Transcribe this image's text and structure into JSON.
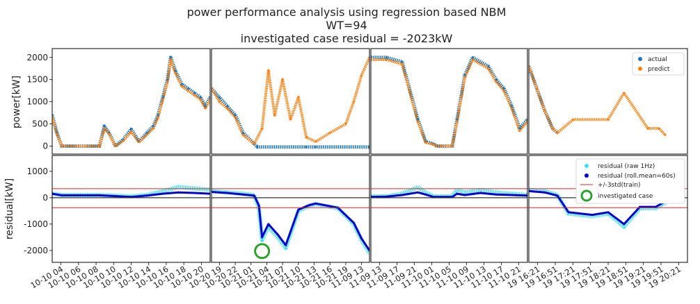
{
  "figure": {
    "title_lines": [
      "power performance analysis using regression based NBM",
      "WT=94",
      "investigated case residual = -2023kW"
    ]
  },
  "colors": {
    "actual": "#1f77b4",
    "predict": "#ff7f0e",
    "residual_raw": "#40e0f0",
    "residual_roll": "#0000cd",
    "std_line": "#d62728",
    "zero_line": "#333333",
    "marker": "#2ca02c"
  },
  "chart_data": {
    "type": "scatter",
    "title": "power performance analysis using regression based NBM / WT=94 / investigated case residual = -2023kW",
    "rows": [
      {
        "key": "power",
        "ylabel": "power[kW]",
        "ylim": [
          -180,
          2200
        ],
        "yticks": [
          0,
          500,
          1000,
          1500,
          2000
        ]
      },
      {
        "key": "residual",
        "ylabel": "residual[kW]",
        "ylim": [
          -2450,
          1600
        ],
        "yticks": [
          -2000,
          -1000,
          0,
          1000
        ]
      }
    ],
    "std_band": [
      -380,
      340
    ],
    "investigated_case": {
      "panel": 1,
      "t": 0.32,
      "residual": -2023
    },
    "legends": {
      "power": [
        "actual",
        "predict"
      ],
      "residual": [
        "residual (raw 1Hz)",
        "residual (roll.mean=60s)",
        "+/-3std(train)",
        "investigated case"
      ]
    },
    "panels": [
      {
        "xticks": [
          "10-10 04",
          "10-10 06",
          "10-10 08",
          "10-10 10",
          "10-10 12",
          "10-10 14",
          "10-10 16",
          "10-10 18",
          "10-10 20"
        ],
        "power_actual": [
          [
            0,
            700
          ],
          [
            0.03,
            300
          ],
          [
            0.06,
            0
          ],
          [
            0.3,
            0
          ],
          [
            0.33,
            450
          ],
          [
            0.36,
            300
          ],
          [
            0.4,
            0
          ],
          [
            0.45,
            150
          ],
          [
            0.5,
            380
          ],
          [
            0.55,
            100
          ],
          [
            0.6,
            300
          ],
          [
            0.64,
            450
          ],
          [
            0.67,
            700
          ],
          [
            0.7,
            1100
          ],
          [
            0.73,
            1500
          ],
          [
            0.75,
            2000
          ],
          [
            0.78,
            1700
          ],
          [
            0.82,
            1400
          ],
          [
            0.86,
            1300
          ],
          [
            0.9,
            1200
          ],
          [
            0.94,
            1100
          ],
          [
            0.97,
            900
          ],
          [
            1,
            1100
          ]
        ],
        "power_predict": [
          [
            0,
            650
          ],
          [
            0.03,
            280
          ],
          [
            0.06,
            0
          ],
          [
            0.3,
            0
          ],
          [
            0.33,
            400
          ],
          [
            0.36,
            280
          ],
          [
            0.4,
            0
          ],
          [
            0.45,
            120
          ],
          [
            0.5,
            320
          ],
          [
            0.55,
            90
          ],
          [
            0.6,
            260
          ],
          [
            0.64,
            400
          ],
          [
            0.67,
            650
          ],
          [
            0.7,
            1050
          ],
          [
            0.73,
            1450
          ],
          [
            0.75,
            1950
          ],
          [
            0.78,
            1650
          ],
          [
            0.82,
            1350
          ],
          [
            0.86,
            1250
          ],
          [
            0.9,
            1150
          ],
          [
            0.94,
            1050
          ],
          [
            0.97,
            850
          ],
          [
            1,
            1050
          ]
        ],
        "resid_raw": [
          [
            0,
            150
          ],
          [
            0.06,
            100
          ],
          [
            0.3,
            100
          ],
          [
            0.5,
            50
          ],
          [
            0.6,
            100
          ],
          [
            0.7,
            250
          ],
          [
            0.8,
            400
          ],
          [
            0.9,
            350
          ],
          [
            1,
            300
          ]
        ],
        "resid_roll": [
          [
            0,
            150
          ],
          [
            0.06,
            90
          ],
          [
            0.3,
            90
          ],
          [
            0.5,
            30
          ],
          [
            0.6,
            80
          ],
          [
            0.7,
            150
          ],
          [
            0.8,
            200
          ],
          [
            0.9,
            180
          ],
          [
            1,
            150
          ]
        ]
      },
      {
        "xticks": [
          "10-20 19",
          "10-20 22",
          "10-21 01",
          "10-21 04",
          "10-21 07",
          "10-21 10",
          "10-21 13",
          "10-21 16",
          "10-21 19",
          "11-09 13"
        ],
        "power_actual": [
          [
            0,
            1300
          ],
          [
            0.05,
            1100
          ],
          [
            0.1,
            900
          ],
          [
            0.15,
            700
          ],
          [
            0.2,
            300
          ],
          [
            0.27,
            50
          ],
          [
            0.29,
            -20
          ],
          [
            0.6,
            -20
          ],
          [
            0.66,
            -20
          ],
          [
            1,
            -20
          ]
        ],
        "power_predict": [
          [
            0,
            1300
          ],
          [
            0.05,
            1000
          ],
          [
            0.1,
            850
          ],
          [
            0.15,
            650
          ],
          [
            0.2,
            250
          ],
          [
            0.27,
            50
          ],
          [
            0.32,
            400
          ],
          [
            0.36,
            1700
          ],
          [
            0.4,
            700
          ],
          [
            0.45,
            1500
          ],
          [
            0.5,
            600
          ],
          [
            0.55,
            1100
          ],
          [
            0.6,
            200
          ],
          [
            0.66,
            100
          ],
          [
            0.75,
            300
          ],
          [
            0.85,
            500
          ],
          [
            0.9,
            1000
          ],
          [
            0.95,
            1600
          ],
          [
            1,
            2000
          ]
        ],
        "resid_raw": [
          [
            0,
            250
          ],
          [
            0.1,
            200
          ],
          [
            0.2,
            150
          ],
          [
            0.27,
            100
          ],
          [
            0.3,
            -400
          ],
          [
            0.32,
            -1600
          ],
          [
            0.36,
            -1100
          ],
          [
            0.42,
            -1500
          ],
          [
            0.47,
            -1900
          ],
          [
            0.55,
            -500
          ],
          [
            0.62,
            -300
          ],
          [
            0.66,
            -250
          ],
          [
            0.8,
            -400
          ],
          [
            0.9,
            -1000
          ],
          [
            0.95,
            -1600
          ],
          [
            1,
            -2100
          ]
        ],
        "resid_roll": [
          [
            0,
            220
          ],
          [
            0.1,
            180
          ],
          [
            0.2,
            120
          ],
          [
            0.27,
            80
          ],
          [
            0.3,
            -300
          ],
          [
            0.32,
            -1500
          ],
          [
            0.36,
            -1000
          ],
          [
            0.42,
            -1400
          ],
          [
            0.47,
            -1800
          ],
          [
            0.55,
            -450
          ],
          [
            0.62,
            -280
          ],
          [
            0.66,
            -220
          ],
          [
            0.8,
            -380
          ],
          [
            0.9,
            -950
          ],
          [
            0.95,
            -1550
          ],
          [
            1,
            -2000
          ]
        ]
      },
      {
        "xticks": [
          "11-09 13",
          "11-09 17",
          "11-09 21",
          "11-10 01",
          "11-10 05",
          "11-10 09",
          "11-10 13",
          "11-10 17",
          "11-10 21"
        ],
        "power_actual": [
          [
            0,
            2000
          ],
          [
            0.1,
            2000
          ],
          [
            0.2,
            1900
          ],
          [
            0.3,
            600
          ],
          [
            0.35,
            100
          ],
          [
            0.4,
            50
          ],
          [
            0.42,
            0
          ],
          [
            0.52,
            0
          ],
          [
            0.55,
            600
          ],
          [
            0.6,
            1600
          ],
          [
            0.65,
            2000
          ],
          [
            0.75,
            1800
          ],
          [
            0.8,
            1500
          ],
          [
            0.85,
            1300
          ],
          [
            0.9,
            900
          ],
          [
            0.95,
            400
          ],
          [
            1,
            600
          ]
        ],
        "power_predict": [
          [
            0,
            1950
          ],
          [
            0.1,
            1950
          ],
          [
            0.2,
            1850
          ],
          [
            0.3,
            550
          ],
          [
            0.35,
            80
          ],
          [
            0.4,
            40
          ],
          [
            0.42,
            0
          ],
          [
            0.52,
            0
          ],
          [
            0.55,
            550
          ],
          [
            0.6,
            1550
          ],
          [
            0.65,
            1950
          ],
          [
            0.75,
            1750
          ],
          [
            0.8,
            1450
          ],
          [
            0.85,
            1250
          ],
          [
            0.9,
            850
          ],
          [
            0.95,
            350
          ],
          [
            1,
            550
          ]
        ],
        "resid_raw": [
          [
            0,
            50
          ],
          [
            0.1,
            50
          ],
          [
            0.2,
            150
          ],
          [
            0.3,
            400
          ],
          [
            0.35,
            200
          ],
          [
            0.4,
            50
          ],
          [
            0.52,
            50
          ],
          [
            0.55,
            300
          ],
          [
            0.6,
            200
          ],
          [
            0.7,
            300
          ],
          [
            0.8,
            200
          ],
          [
            0.9,
            150
          ],
          [
            1,
            100
          ]
        ],
        "resid_roll": [
          [
            0,
            30
          ],
          [
            0.1,
            40
          ],
          [
            0.2,
            100
          ],
          [
            0.3,
            200
          ],
          [
            0.35,
            120
          ],
          [
            0.4,
            30
          ],
          [
            0.52,
            30
          ],
          [
            0.55,
            150
          ],
          [
            0.6,
            100
          ],
          [
            0.7,
            180
          ],
          [
            0.8,
            120
          ],
          [
            0.9,
            100
          ],
          [
            1,
            80
          ]
        ]
      },
      {
        "xticks": [
          "19 16:21",
          "19 16:51",
          "19 17:21",
          "19 17:51",
          "19 18:21",
          "19 18:51",
          "19 19:21",
          "19 19:51",
          "19 20:21"
        ],
        "power_actual": [
          [
            0,
            1800
          ],
          [
            0.05,
            1300
          ],
          [
            0.1,
            800
          ],
          [
            0.15,
            400
          ],
          [
            0.18,
            300
          ]
        ],
        "power_predict": [
          [
            0,
            1800
          ],
          [
            0.05,
            1300
          ],
          [
            0.1,
            800
          ],
          [
            0.15,
            400
          ],
          [
            0.18,
            300
          ],
          [
            0.28,
            600
          ],
          [
            0.5,
            600
          ],
          [
            0.6,
            1200
          ],
          [
            0.75,
            400
          ],
          [
            0.82,
            400
          ],
          [
            0.86,
            250
          ]
        ],
        "resid_raw": [
          [
            0,
            300
          ],
          [
            0.1,
            250
          ],
          [
            0.18,
            100
          ],
          [
            0.25,
            -600
          ],
          [
            0.4,
            -700
          ],
          [
            0.5,
            -600
          ],
          [
            0.6,
            -1100
          ],
          [
            0.7,
            -400
          ],
          [
            0.8,
            -400
          ],
          [
            0.86,
            -200
          ]
        ],
        "resid_roll": [
          [
            0,
            250
          ],
          [
            0.1,
            200
          ],
          [
            0.18,
            80
          ],
          [
            0.25,
            -550
          ],
          [
            0.4,
            -650
          ],
          [
            0.5,
            -550
          ],
          [
            0.6,
            -1000
          ],
          [
            0.7,
            -350
          ],
          [
            0.8,
            -350
          ],
          [
            0.86,
            -150
          ]
        ]
      }
    ]
  }
}
